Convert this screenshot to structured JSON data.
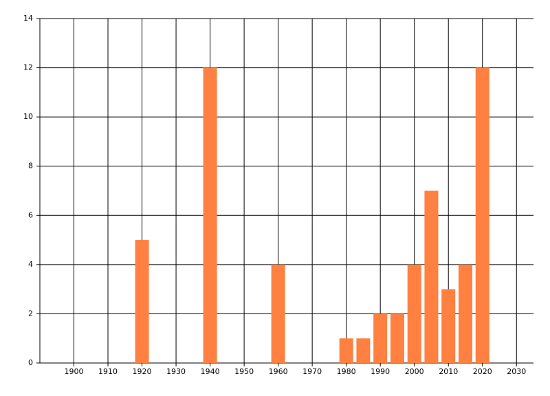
{
  "chart_data": {
    "type": "bar",
    "x": [
      1920,
      1940,
      1960,
      1980,
      1985,
      1990,
      1995,
      2000,
      2005,
      2010,
      2015,
      2020
    ],
    "values": [
      5,
      12,
      4,
      1,
      1,
      2,
      2,
      4,
      7,
      3,
      4,
      12
    ],
    "color": "#ff8040",
    "xlim": [
      1890,
      2035
    ],
    "xticks": [
      1900,
      1910,
      1920,
      1930,
      1940,
      1950,
      1960,
      1970,
      1980,
      1990,
      2000,
      2010,
      2020,
      2030
    ],
    "ylim": [
      0,
      14
    ],
    "yticks": [
      0,
      2,
      4,
      6,
      8,
      10,
      12,
      14
    ],
    "grid": true
  }
}
